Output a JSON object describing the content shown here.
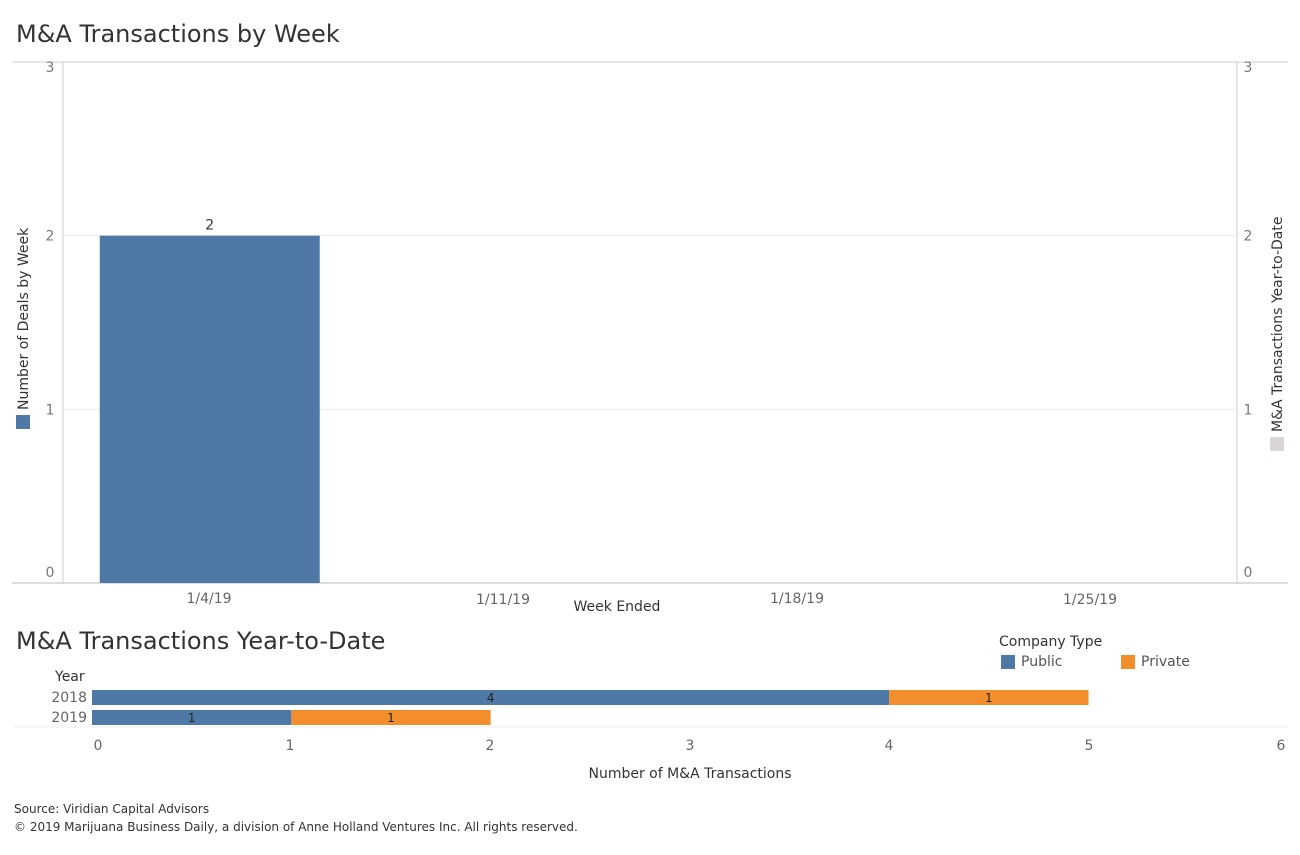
{
  "top_title": "M&A Transactions by Week",
  "bottom_title": "M&A Transactions Year-to-Date",
  "legend": {
    "title": "Company Type",
    "items": [
      {
        "label": "Public",
        "color": "#4e79a7"
      },
      {
        "label": "Private",
        "color": "#f28e2b"
      }
    ]
  },
  "source_line": "Source: Viridian Capital Advisors",
  "copyright_line": "© 2019 Marijuana Business Daily, a division of Anne Holland Ventures Inc. All rights reserved.",
  "chart_data": [
    {
      "type": "bar",
      "title": "M&A Transactions by Week",
      "categories": [
        "1/4/19",
        "1/11/19",
        "1/18/19",
        "1/25/19"
      ],
      "values": [
        2,
        0,
        0,
        0
      ],
      "data_labels": [
        "2",
        "",
        "",
        ""
      ],
      "xlabel": "Week Ended",
      "ylabel": "Number of Deals by Week",
      "ylabel_right": "M&A Transactions Year-to-Date",
      "ylim": [
        0,
        3
      ],
      "yticks": [
        "0",
        "1",
        "2",
        "3"
      ],
      "bar_color": "#4e79a7",
      "right_legend_color": "#d9d5d5",
      "grid": true
    },
    {
      "type": "bar",
      "orientation": "horizontal",
      "stacked": true,
      "title": "M&A Transactions Year-to-Date",
      "category_header": "Year",
      "categories": [
        "2018",
        "2019"
      ],
      "series": [
        {
          "name": "Public",
          "values": [
            4,
            1
          ],
          "color": "#4e79a7"
        },
        {
          "name": "Private",
          "values": [
            1,
            1
          ],
          "color": "#f28e2b"
        }
      ],
      "data_labels": [
        [
          "4",
          "1"
        ],
        [
          "1",
          "1"
        ]
      ],
      "xlabel": "Number of M&A Transactions",
      "xlim": [
        0,
        6
      ],
      "xticks": [
        "0",
        "1",
        "2",
        "3",
        "4",
        "5",
        "6"
      ],
      "legend_position": "top-right"
    }
  ]
}
